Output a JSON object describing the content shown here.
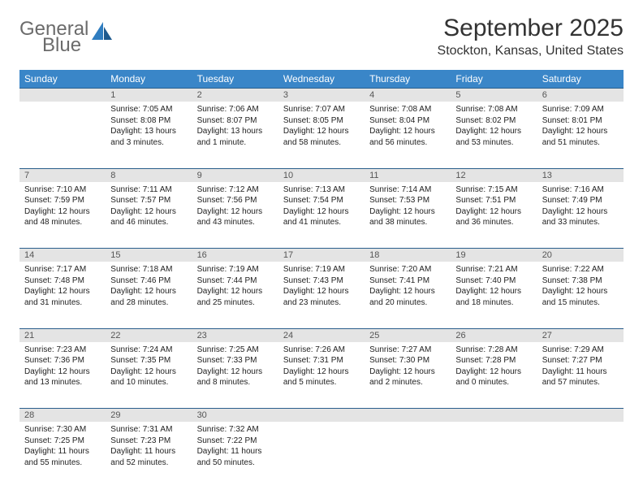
{
  "logo": {
    "line1": "General",
    "line2": "Blue"
  },
  "title": "September 2025",
  "location": "Stockton, Kansas, United States",
  "colors": {
    "header_bg": "#3a86c8",
    "header_text": "#ffffff",
    "daynum_bg": "#e4e4e4",
    "border": "#2b5f8c",
    "logo_gray": "#6b6b6b",
    "logo_blue": "#2f7dc0"
  },
  "weekdays": [
    "Sunday",
    "Monday",
    "Tuesday",
    "Wednesday",
    "Thursday",
    "Friday",
    "Saturday"
  ],
  "weeks": [
    [
      null,
      {
        "n": "1",
        "sunrise": "7:05 AM",
        "sunset": "8:08 PM",
        "daylight": "13 hours and 3 minutes."
      },
      {
        "n": "2",
        "sunrise": "7:06 AM",
        "sunset": "8:07 PM",
        "daylight": "13 hours and 1 minute."
      },
      {
        "n": "3",
        "sunrise": "7:07 AM",
        "sunset": "8:05 PM",
        "daylight": "12 hours and 58 minutes."
      },
      {
        "n": "4",
        "sunrise": "7:08 AM",
        "sunset": "8:04 PM",
        "daylight": "12 hours and 56 minutes."
      },
      {
        "n": "5",
        "sunrise": "7:08 AM",
        "sunset": "8:02 PM",
        "daylight": "12 hours and 53 minutes."
      },
      {
        "n": "6",
        "sunrise": "7:09 AM",
        "sunset": "8:01 PM",
        "daylight": "12 hours and 51 minutes."
      }
    ],
    [
      {
        "n": "7",
        "sunrise": "7:10 AM",
        "sunset": "7:59 PM",
        "daylight": "12 hours and 48 minutes."
      },
      {
        "n": "8",
        "sunrise": "7:11 AM",
        "sunset": "7:57 PM",
        "daylight": "12 hours and 46 minutes."
      },
      {
        "n": "9",
        "sunrise": "7:12 AM",
        "sunset": "7:56 PM",
        "daylight": "12 hours and 43 minutes."
      },
      {
        "n": "10",
        "sunrise": "7:13 AM",
        "sunset": "7:54 PM",
        "daylight": "12 hours and 41 minutes."
      },
      {
        "n": "11",
        "sunrise": "7:14 AM",
        "sunset": "7:53 PM",
        "daylight": "12 hours and 38 minutes."
      },
      {
        "n": "12",
        "sunrise": "7:15 AM",
        "sunset": "7:51 PM",
        "daylight": "12 hours and 36 minutes."
      },
      {
        "n": "13",
        "sunrise": "7:16 AM",
        "sunset": "7:49 PM",
        "daylight": "12 hours and 33 minutes."
      }
    ],
    [
      {
        "n": "14",
        "sunrise": "7:17 AM",
        "sunset": "7:48 PM",
        "daylight": "12 hours and 31 minutes."
      },
      {
        "n": "15",
        "sunrise": "7:18 AM",
        "sunset": "7:46 PM",
        "daylight": "12 hours and 28 minutes."
      },
      {
        "n": "16",
        "sunrise": "7:19 AM",
        "sunset": "7:44 PM",
        "daylight": "12 hours and 25 minutes."
      },
      {
        "n": "17",
        "sunrise": "7:19 AM",
        "sunset": "7:43 PM",
        "daylight": "12 hours and 23 minutes."
      },
      {
        "n": "18",
        "sunrise": "7:20 AM",
        "sunset": "7:41 PM",
        "daylight": "12 hours and 20 minutes."
      },
      {
        "n": "19",
        "sunrise": "7:21 AM",
        "sunset": "7:40 PM",
        "daylight": "12 hours and 18 minutes."
      },
      {
        "n": "20",
        "sunrise": "7:22 AM",
        "sunset": "7:38 PM",
        "daylight": "12 hours and 15 minutes."
      }
    ],
    [
      {
        "n": "21",
        "sunrise": "7:23 AM",
        "sunset": "7:36 PM",
        "daylight": "12 hours and 13 minutes."
      },
      {
        "n": "22",
        "sunrise": "7:24 AM",
        "sunset": "7:35 PM",
        "daylight": "12 hours and 10 minutes."
      },
      {
        "n": "23",
        "sunrise": "7:25 AM",
        "sunset": "7:33 PM",
        "daylight": "12 hours and 8 minutes."
      },
      {
        "n": "24",
        "sunrise": "7:26 AM",
        "sunset": "7:31 PM",
        "daylight": "12 hours and 5 minutes."
      },
      {
        "n": "25",
        "sunrise": "7:27 AM",
        "sunset": "7:30 PM",
        "daylight": "12 hours and 2 minutes."
      },
      {
        "n": "26",
        "sunrise": "7:28 AM",
        "sunset": "7:28 PM",
        "daylight": "12 hours and 0 minutes."
      },
      {
        "n": "27",
        "sunrise": "7:29 AM",
        "sunset": "7:27 PM",
        "daylight": "11 hours and 57 minutes."
      }
    ],
    [
      {
        "n": "28",
        "sunrise": "7:30 AM",
        "sunset": "7:25 PM",
        "daylight": "11 hours and 55 minutes."
      },
      {
        "n": "29",
        "sunrise": "7:31 AM",
        "sunset": "7:23 PM",
        "daylight": "11 hours and 52 minutes."
      },
      {
        "n": "30",
        "sunrise": "7:32 AM",
        "sunset": "7:22 PM",
        "daylight": "11 hours and 50 minutes."
      },
      null,
      null,
      null,
      null
    ]
  ],
  "labels": {
    "sunrise": "Sunrise:",
    "sunset": "Sunset:",
    "daylight": "Daylight:"
  }
}
